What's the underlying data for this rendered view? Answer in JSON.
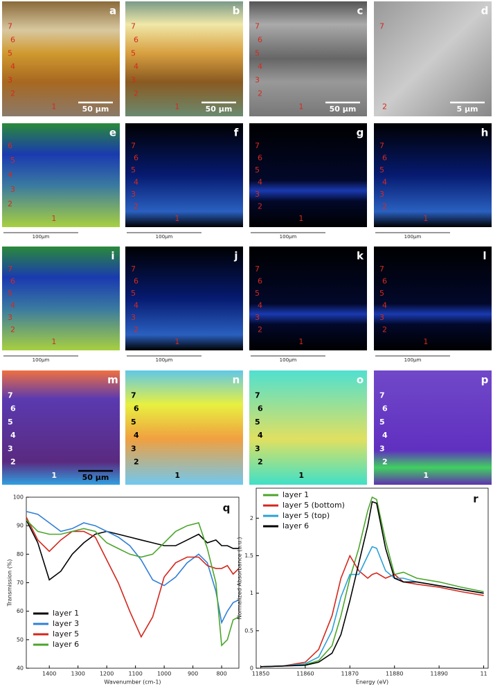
{
  "panels": [
    {
      "letter": "a",
      "layers": [
        "7",
        "6",
        "5",
        "4",
        "3",
        "2",
        "1"
      ],
      "scale": "50 µm",
      "style": "photo1",
      "layer_color": "#d42a1e"
    },
    {
      "letter": "b",
      "layers": [
        "7",
        "6",
        "5",
        "4",
        "3",
        "2",
        "1"
      ],
      "scale": "50 µm",
      "style": "photo2",
      "layer_color": "#d42a1e"
    },
    {
      "letter": "c",
      "layers": [
        "7",
        "6",
        "5",
        "4",
        "3",
        "2",
        "1"
      ],
      "scale": "50 µm",
      "style": "sem1",
      "layer_color": "#d42a1e"
    },
    {
      "letter": "d",
      "layers": [
        "7",
        "2"
      ],
      "scale": "5 µm",
      "style": "sem2",
      "layer_color": "#d42a1e"
    },
    {
      "letter": "e",
      "layers": [
        "6",
        "5",
        "4",
        "3",
        "2",
        "1"
      ],
      "scale": "100µm",
      "style": "map1",
      "layer_color": "#d42a1e"
    },
    {
      "letter": "f",
      "layers": [
        "7",
        "6",
        "5",
        "4",
        "3",
        "2",
        "1"
      ],
      "scale": "100µm",
      "style": "map2",
      "layer_color": "#d42a1e"
    },
    {
      "letter": "g",
      "layers": [
        "7",
        "6",
        "5",
        "4",
        "3",
        "2",
        "1"
      ],
      "scale": "100µm",
      "style": "map3",
      "layer_color": "#d42a1e"
    },
    {
      "letter": "h",
      "layers": [
        "7",
        "6",
        "5",
        "4",
        "3",
        "2",
        "1"
      ],
      "scale": "100µm",
      "style": "map2",
      "layer_color": "#d42a1e"
    },
    {
      "letter": "i",
      "layers": [
        "7",
        "6",
        "5",
        "4",
        "3",
        "2",
        "1"
      ],
      "scale": "100µm",
      "style": "map1",
      "layer_color": "#d42a1e"
    },
    {
      "letter": "j",
      "layers": [
        "7",
        "6",
        "5",
        "4",
        "3",
        "2",
        "1"
      ],
      "scale": "100µm",
      "style": "map2",
      "layer_color": "#d42a1e"
    },
    {
      "letter": "k",
      "layers": [
        "7",
        "6",
        "5",
        "4",
        "3",
        "2",
        "1"
      ],
      "scale": "100µm",
      "style": "map3",
      "layer_color": "#d42a1e"
    },
    {
      "letter": "l",
      "layers": [
        "7",
        "6",
        "5",
        "4",
        "3",
        "2",
        "1"
      ],
      "scale": "100µm",
      "style": "map3",
      "layer_color": "#d42a1e"
    },
    {
      "letter": "m",
      "layers": [
        "7",
        "6",
        "5",
        "4",
        "3",
        "2",
        "1"
      ],
      "scale": "50 µm",
      "style": "heat1",
      "layer_color": "#ffffff"
    },
    {
      "letter": "n",
      "layers": [
        "7",
        "6",
        "5",
        "4",
        "3",
        "2",
        "1"
      ],
      "style": "heat2",
      "layer_color": "#000000"
    },
    {
      "letter": "o",
      "layers": [
        "7",
        "6",
        "5",
        "4",
        "3",
        "2",
        "1"
      ],
      "style": "heat3",
      "layer_color": "#000000"
    },
    {
      "letter": "p",
      "layers": [
        "7",
        "6",
        "5",
        "4",
        "3",
        "2",
        "1"
      ],
      "style": "heat4",
      "layer_color": "#ffffff"
    }
  ],
  "chart_data": [
    {
      "type": "line",
      "label": "q",
      "x_label": "Wavenumber (cm-1)",
      "y_label": "Transmission (%)",
      "x": [
        1480,
        1440,
        1400,
        1360,
        1320,
        1280,
        1240,
        1200,
        1160,
        1120,
        1080,
        1040,
        1000,
        960,
        920,
        880,
        850,
        820,
        800,
        780,
        760,
        740
      ],
      "xlim": [
        1480,
        740
      ],
      "xticks": [
        1400,
        1300,
        1200,
        1100,
        1000,
        900,
        800
      ],
      "ylim": [
        40,
        100
      ],
      "yticks": [
        40,
        50,
        60,
        70,
        80,
        90,
        100
      ],
      "legend": "lower-left",
      "series": [
        {
          "name": "layer 1",
          "color": "#000000",
          "values": [
            92,
            84,
            71,
            74,
            80,
            84,
            87,
            88,
            87,
            86,
            85,
            84,
            83,
            83,
            85,
            87,
            84,
            85,
            83,
            83,
            82,
            82
          ]
        },
        {
          "name": "layer 3",
          "color": "#2f7fd8",
          "values": [
            95,
            94,
            91,
            88,
            89,
            91,
            90,
            88,
            86,
            83,
            78,
            71,
            69,
            72,
            77,
            80,
            77,
            67,
            56,
            60,
            63,
            64
          ]
        },
        {
          "name": "layer 5",
          "color": "#d4261c",
          "values": [
            93,
            85,
            81,
            85,
            88,
            88,
            86,
            78,
            70,
            60,
            51,
            58,
            72,
            77,
            79,
            79,
            76,
            75,
            75,
            76,
            73,
            75
          ]
        },
        {
          "name": "layer 6",
          "color": "#4aa52a",
          "values": [
            92,
            88,
            87,
            87,
            88,
            89,
            88,
            84,
            82,
            80,
            79,
            80,
            84,
            88,
            90,
            91,
            82,
            70,
            48,
            50,
            57,
            58
          ]
        }
      ]
    },
    {
      "type": "line",
      "label": "r",
      "x_label": "Energy (eV)",
      "y_label": "Normalized Absorbance (a.u.)",
      "x": [
        11850,
        11855,
        11860,
        11863,
        11866,
        11868,
        11870,
        11872,
        11874,
        11875,
        11876,
        11878,
        11880,
        11882,
        11885,
        11890,
        11895,
        11900
      ],
      "xlim": [
        11849,
        11901
      ],
      "xticks": [
        11850,
        11860,
        11870,
        11880,
        11890,
        {
          "value": 11900,
          "label": "11"
        }
      ],
      "ylim": [
        0,
        2.4
      ],
      "yticks": [
        0,
        0.5,
        1,
        1.5,
        2
      ],
      "legend": "upper-left",
      "series": [
        {
          "name": "layer 1",
          "color": "#4aa52a",
          "values": [
            0.02,
            0.03,
            0.05,
            0.1,
            0.3,
            0.7,
            1.2,
            1.6,
            2.1,
            2.28,
            2.25,
            1.7,
            1.25,
            1.28,
            1.2,
            1.15,
            1.08,
            1.02
          ]
        },
        {
          "name": "layer 5 (bottom)",
          "color": "#d4261c",
          "values": [
            0.02,
            0.03,
            0.08,
            0.25,
            0.7,
            1.2,
            1.5,
            1.3,
            1.2,
            1.25,
            1.27,
            1.2,
            1.25,
            1.15,
            1.12,
            1.08,
            1.02,
            0.97
          ]
        },
        {
          "name": "layer 5 (top)",
          "color": "#2aa0d8",
          "values": [
            0.02,
            0.03,
            0.06,
            0.15,
            0.5,
            0.95,
            1.25,
            1.25,
            1.5,
            1.62,
            1.6,
            1.3,
            1.2,
            1.2,
            1.15,
            1.1,
            1.05,
            1.0
          ]
        },
        {
          "name": "layer 6",
          "color": "#000000",
          "values": [
            0.02,
            0.03,
            0.04,
            0.08,
            0.2,
            0.45,
            0.9,
            1.4,
            1.9,
            2.22,
            2.2,
            1.6,
            1.2,
            1.15,
            1.15,
            1.1,
            1.05,
            1.0
          ]
        }
      ]
    }
  ]
}
